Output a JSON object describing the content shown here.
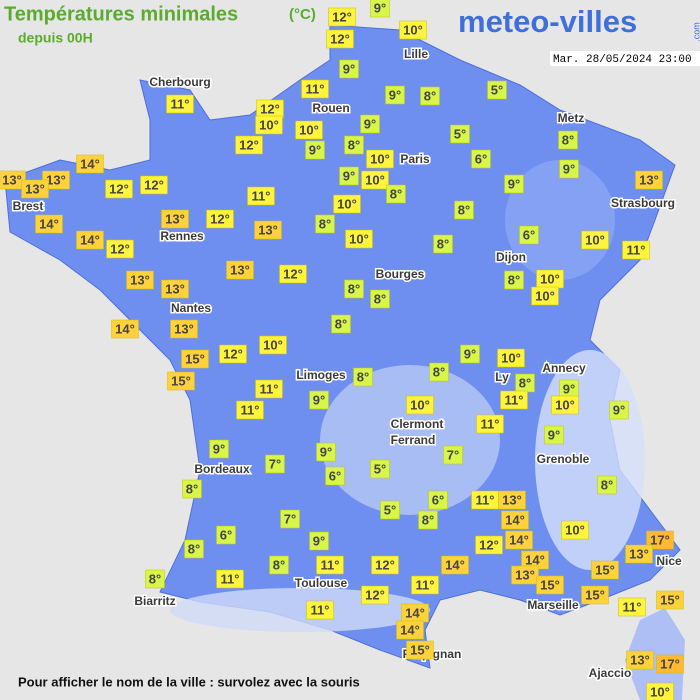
{
  "header": {
    "title": "Températures minimales",
    "unit": "(°C)",
    "subtitle": "depuis 00H",
    "logo": "meteo-villes",
    "logo_suffix": ".com",
    "date": "Mar. 28/05/2024 23:00"
  },
  "cities": [
    "Cherbourg",
    "Lille",
    "Rouen",
    "Metz",
    "Paris",
    "Brest",
    "Strasbourg",
    "Rennes",
    "Dijon",
    "Bourges",
    "Nantes",
    "Annecy",
    "Limoges",
    "Ly",
    "Clermont",
    "Ferrand",
    "Grenoble",
    "Bordeaux",
    "Nice",
    "Toulouse",
    "Marseille",
    "Biarritz",
    "Perpignan",
    "Ajaccio"
  ],
  "temperatures": [
    "12°",
    "9°",
    "12°",
    "10°",
    "9°",
    "11°",
    "9°",
    "8°",
    "5°",
    "11°",
    "12°",
    "10°",
    "10°",
    "9°",
    "5°",
    "8°",
    "12°",
    "9°",
    "8°",
    "10°",
    "6°",
    "9°",
    "14°",
    "13°",
    "13°",
    "13°",
    "12°",
    "12°",
    "9°",
    "10°",
    "8°",
    "9°",
    "13°",
    "11°",
    "10°",
    "8°",
    "14°",
    "13°",
    "12°",
    "13°",
    "8°",
    "14°",
    "12°",
    "10°",
    "8°",
    "6°",
    "10°",
    "11°",
    "13°",
    "12°",
    "13°",
    "8°",
    "10°",
    "13°",
    "8°",
    "8°",
    "10°",
    "14°",
    "13°",
    "8°",
    "12°",
    "10°",
    "9°",
    "10°",
    "15°",
    "15°",
    "8°",
    "8°",
    "8°",
    "9°",
    "11°",
    "11°",
    "10°",
    "9°",
    "9°",
    "10°",
    "11°",
    "11°",
    "9°",
    "9°",
    "9°",
    "7°",
    "7°",
    "5°",
    "6°",
    "8°",
    "8°",
    "6°",
    "11°",
    "13°",
    "5°",
    "8°",
    "14°",
    "7°",
    "10°",
    "6°",
    "9°",
    "14°",
    "12°",
    "17°",
    "8°",
    "13°",
    "14°",
    "8°",
    "11°",
    "12°",
    "14°",
    "13°",
    "15°",
    "8°",
    "11°",
    "15°",
    "11°",
    "12°",
    "15°",
    "15°",
    "11°",
    "11°",
    "14°",
    "14°",
    "15°",
    "13°",
    "17°",
    "10°"
  ],
  "footer": "Pour afficher le nom de la ville : survolez avec la souris"
}
